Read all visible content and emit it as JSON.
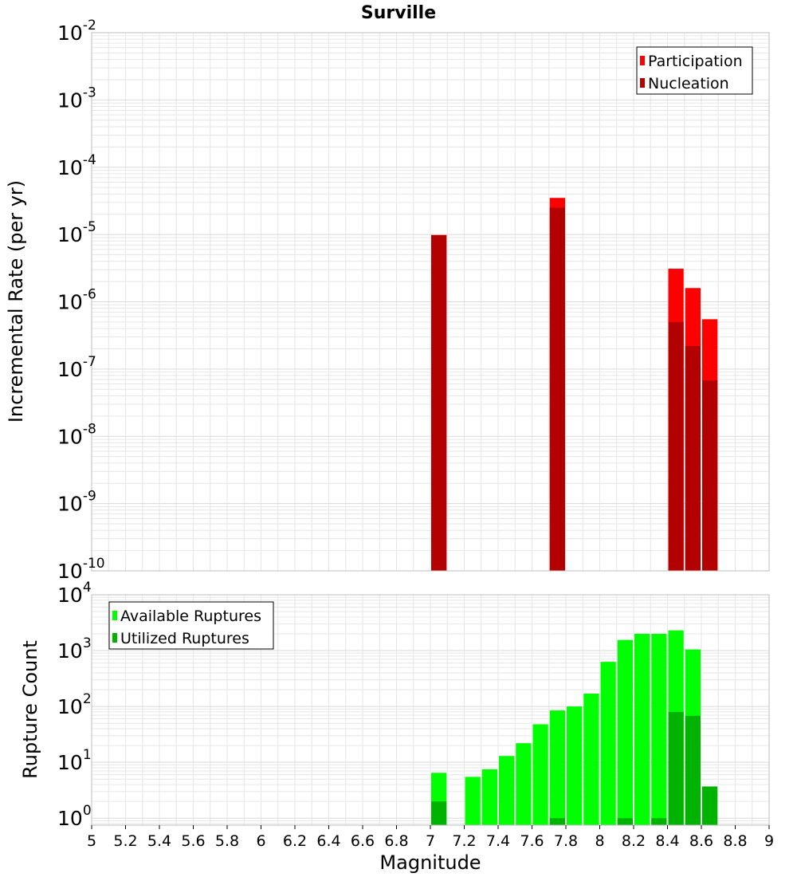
{
  "title": "Surville",
  "xlabel": "Magnitude",
  "colors": {
    "participation": "#ff0000",
    "nucleation": "#b30000",
    "available": "#00ff00",
    "utilized": "#00b300",
    "grid": "#e6e6e6",
    "frame": "#bdbdbd"
  },
  "chart_data": [
    {
      "type": "bar",
      "title": "Surville",
      "xlabel": "",
      "ylabel": "Incremental Rate (per yr)",
      "yscale": "log",
      "xlim": [
        5,
        9
      ],
      "ylim": [
        1e-10,
        0.01
      ],
      "ytick_exponents": [
        -10,
        -9,
        -8,
        -7,
        -6,
        -5,
        -4,
        -3,
        -2
      ],
      "grid": true,
      "legend_position": "top-right",
      "legend": [
        "Participation",
        "Nucleation"
      ],
      "x": [
        7.05,
        7.75,
        8.45,
        8.55,
        8.65
      ],
      "series": [
        {
          "name": "Participation",
          "values": [
            9.8e-06,
            3.5e-05,
            3.1e-06,
            1.6e-06,
            5.5e-07
          ]
        },
        {
          "name": "Nucleation",
          "values": [
            9.8e-06,
            2.5e-05,
            5e-07,
            2.2e-07,
            6.8e-08
          ]
        }
      ]
    },
    {
      "type": "bar",
      "title": "",
      "xlabel": "Magnitude",
      "ylabel": "Rupture Count",
      "yscale": "log",
      "xlim": [
        5,
        9
      ],
      "ylim": [
        0.75,
        10000
      ],
      "ytick_exponents": [
        0,
        1,
        2,
        3,
        4
      ],
      "xticks": [
        "5",
        "5.2",
        "5.4",
        "5.6",
        "5.8",
        "6",
        "6.2",
        "6.4",
        "6.6",
        "6.8",
        "7",
        "7.2",
        "7.4",
        "7.6",
        "7.8",
        "8",
        "8.2",
        "8.4",
        "8.6",
        "8.8",
        "9"
      ],
      "grid": true,
      "legend_position": "top-left",
      "legend": [
        "Available Ruptures",
        "Utilized Ruptures"
      ],
      "x": [
        7.05,
        7.25,
        7.35,
        7.45,
        7.55,
        7.65,
        7.75,
        7.85,
        7.95,
        8.05,
        8.15,
        8.25,
        8.35,
        8.45,
        8.55,
        8.65
      ],
      "series": [
        {
          "name": "Available Ruptures",
          "values": [
            6.5,
            5.5,
            7.5,
            13,
            22,
            48,
            85,
            100,
            170,
            630,
            1550,
            2000,
            2000,
            2300,
            1050,
            0
          ]
        },
        {
          "name": "Utilized Ruptures",
          "values": [
            2,
            0,
            0,
            0,
            0,
            0,
            1,
            0,
            0,
            0,
            1,
            0,
            1,
            80,
            68,
            3.7
          ]
        }
      ]
    }
  ]
}
